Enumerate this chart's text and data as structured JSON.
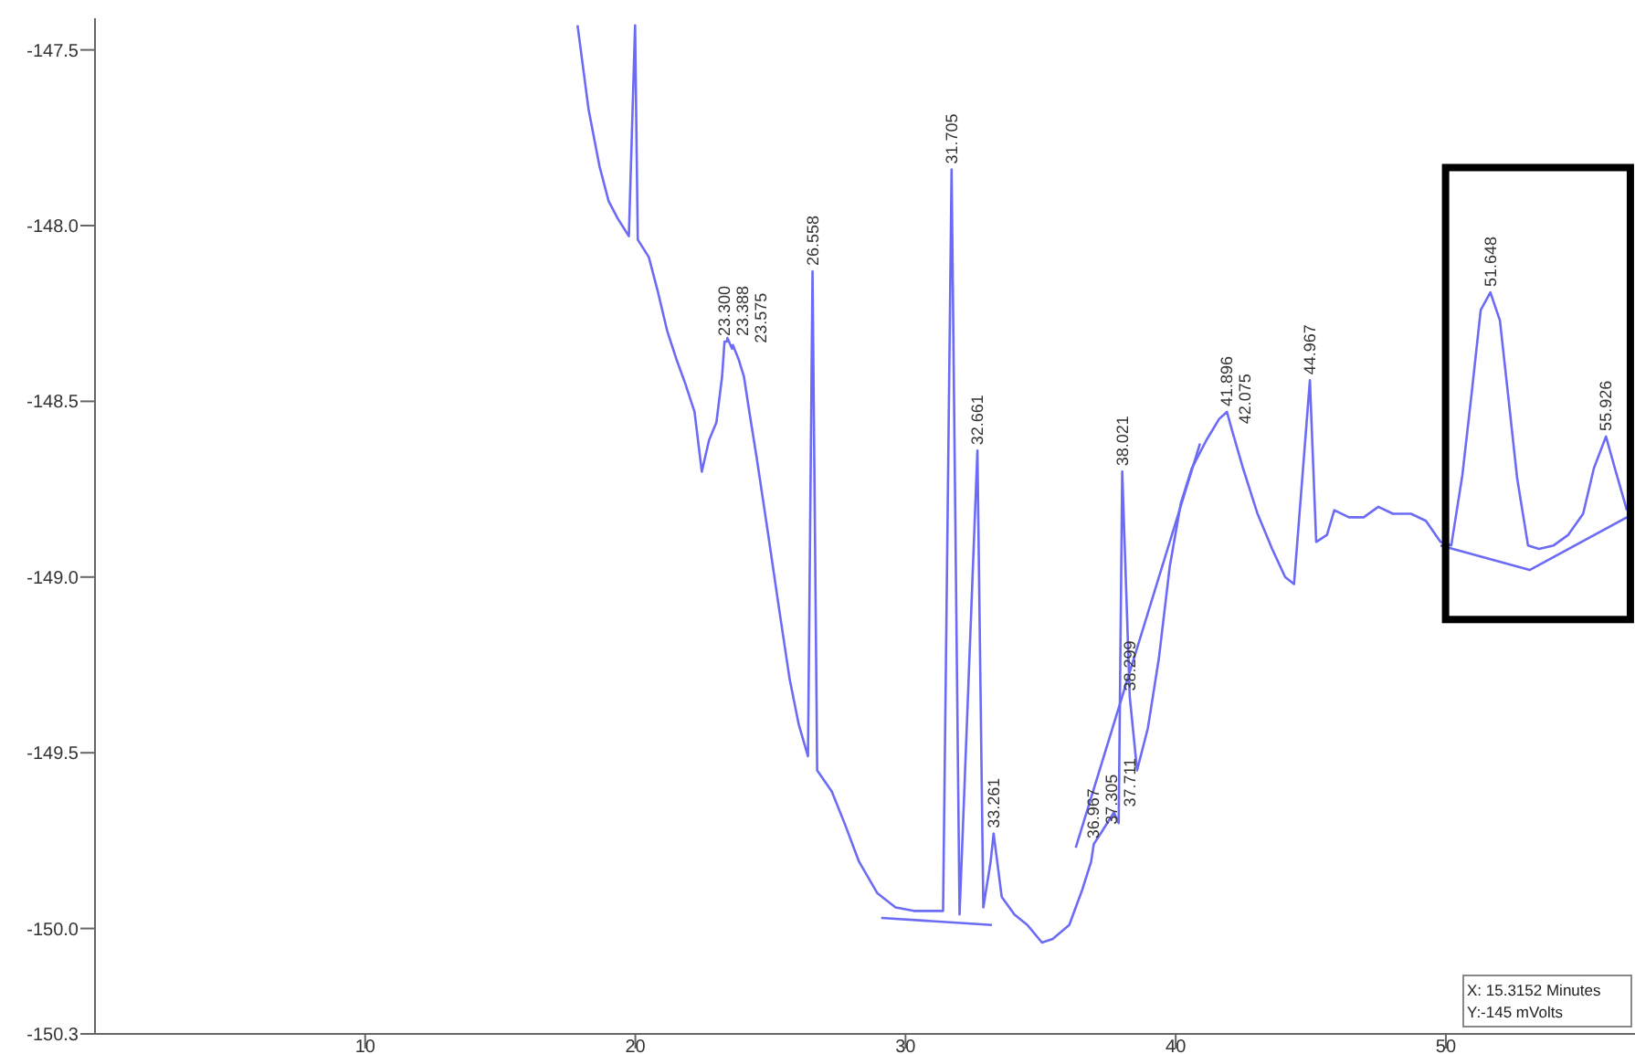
{
  "chart_data": {
    "type": "line",
    "xlim": [
      0,
      57.0
    ],
    "xticks": [
      10,
      20,
      30,
      40,
      50
    ],
    "ylim": [
      -150.3,
      -147.41
    ],
    "yticks": [
      {
        "value": -147.5,
        "label": "-147.5"
      },
      {
        "value": -148,
        "label": "-148.0"
      },
      {
        "value": -148.5,
        "label": "-148.5"
      },
      {
        "value": -149,
        "label": "-149.0"
      },
      {
        "value": -149.5,
        "label": "-149.5"
      },
      {
        "value": -150,
        "label": "-150.0"
      },
      {
        "value": -150.3,
        "label": "-150.3"
      }
    ],
    "grid": false,
    "marker": "none",
    "line_style": "solid",
    "series": [
      {
        "color": "#6b6bf5",
        "x": [
          17.86,
          18.27,
          18.67,
          19.01,
          19.35,
          19.76,
          19.99,
          20.09,
          20.5,
          20.84,
          21.18,
          21.52,
          21.85,
          22.19,
          22.46,
          22.73,
          23.0,
          23.21,
          23.3,
          23.39,
          23.41,
          23.58,
          23.61,
          23.82,
          24.02,
          24.22,
          24.49,
          24.9,
          25.3,
          25.71,
          26.05,
          26.39,
          26.558,
          26.73,
          27.27,
          27.74,
          28.28,
          28.96,
          29.63,
          30.31,
          30.99,
          31.39,
          31.705,
          32.0,
          32.661,
          32.88,
          33.15,
          33.261,
          33.56,
          34.03,
          34.51,
          35.05,
          35.45,
          36.06,
          36.54,
          36.87,
          36.967,
          37.305,
          37.711,
          37.89,
          38.021,
          38.299,
          38.57,
          38.97,
          39.38,
          39.78,
          40.19,
          40.6,
          41.14,
          41.61,
          41.896,
          42.075,
          42.49,
          43.03,
          43.57,
          44.05,
          44.38,
          44.967,
          45.2,
          45.6,
          45.87,
          46.41,
          46.96,
          47.5,
          48.04,
          48.71,
          49.26,
          49.8,
          50.2,
          50.61,
          50.95,
          51.29,
          51.648,
          52.0,
          52.3,
          52.64,
          53.04,
          53.45,
          53.99,
          54.53,
          55.08,
          55.48,
          55.926,
          56.29,
          56.7
        ],
        "values": [
          -147.43,
          -147.67,
          -147.83,
          -147.93,
          -147.98,
          -148.03,
          -147.43,
          -148.04,
          -148.09,
          -148.19,
          -148.3,
          -148.38,
          -148.45,
          -148.53,
          -148.7,
          -148.61,
          -148.56,
          -148.43,
          -148.33,
          -148.33,
          -148.32,
          -148.35,
          -148.34,
          -148.38,
          -148.43,
          -148.53,
          -148.66,
          -148.87,
          -149.08,
          -149.29,
          -149.42,
          -149.51,
          -148.13,
          -149.55,
          -149.61,
          -149.7,
          -149.81,
          -149.9,
          -149.94,
          -149.95,
          -149.95,
          -149.95,
          -147.84,
          -149.96,
          -148.64,
          -149.94,
          -149.81,
          -149.73,
          -149.91,
          -149.96,
          -149.99,
          -150.04,
          -150.03,
          -149.99,
          -149.89,
          -149.81,
          -149.76,
          -149.72,
          -149.67,
          -149.7,
          -148.7,
          -149.34,
          -149.55,
          -149.43,
          -149.23,
          -148.97,
          -148.79,
          -148.69,
          -148.61,
          -148.55,
          -148.53,
          -148.58,
          -148.69,
          -148.82,
          -148.92,
          -149.0,
          -149.02,
          -148.44,
          -148.9,
          -148.88,
          -148.81,
          -148.83,
          -148.83,
          -148.8,
          -148.82,
          -148.82,
          -148.84,
          -148.9,
          -148.91,
          -148.71,
          -148.48,
          -148.24,
          -148.19,
          -148.27,
          -148.48,
          -148.72,
          -148.91,
          -148.92,
          -148.91,
          -148.88,
          -148.82,
          -148.69,
          -148.6,
          -148.7,
          -148.81
        ]
      },
      {
        "color": "#6b6bf5",
        "x": [
          29.1,
          33.2
        ],
        "values": [
          -149.97,
          -149.99
        ]
      },
      {
        "color": "#6b6bf5",
        "x": [
          36.3,
          40.9
        ],
        "values": [
          -149.77,
          -148.62
        ]
      },
      {
        "color": "#6b6bf5",
        "x": [
          49.8,
          53.1,
          56.7
        ],
        "values": [
          -148.91,
          -148.98,
          -148.83
        ]
      }
    ],
    "annotations": [
      {
        "text": "23.300",
        "x": 23.3,
        "y": -148.33
      },
      {
        "text": "23.388",
        "x": 23.39,
        "y": -148.33
      },
      {
        "text": "23.575",
        "x": 23.58,
        "y": -148.35
      },
      {
        "text": "26.558",
        "x": 26.558,
        "y": -148.13
      },
      {
        "text": "31.705",
        "x": 31.705,
        "y": -147.84
      },
      {
        "text": "32.661",
        "x": 32.661,
        "y": -148.64
      },
      {
        "text": "33.261",
        "x": 33.261,
        "y": -149.73
      },
      {
        "text": "36.967",
        "x": 36.967,
        "y": -149.76
      },
      {
        "text": "37.305",
        "x": 37.305,
        "y": -149.72
      },
      {
        "text": "37.711",
        "x": 37.711,
        "y": -149.67
      },
      {
        "text": "38.021",
        "x": 38.021,
        "y": -148.7
      },
      {
        "text": "38.299",
        "x": 38.299,
        "y": -149.34
      },
      {
        "text": "41.896",
        "x": 41.896,
        "y": -148.53
      },
      {
        "text": "42.075",
        "x": 42.075,
        "y": -148.58
      },
      {
        "text": "44.967",
        "x": 44.967,
        "y": -148.44
      },
      {
        "text": "51.648",
        "x": 51.648,
        "y": -148.19
      },
      {
        "text": "55.926",
        "x": 55.926,
        "y": -148.6
      },
      "X: 15.3152 Minutes",
      "Y:-145 mVolts"
    ]
  }
}
